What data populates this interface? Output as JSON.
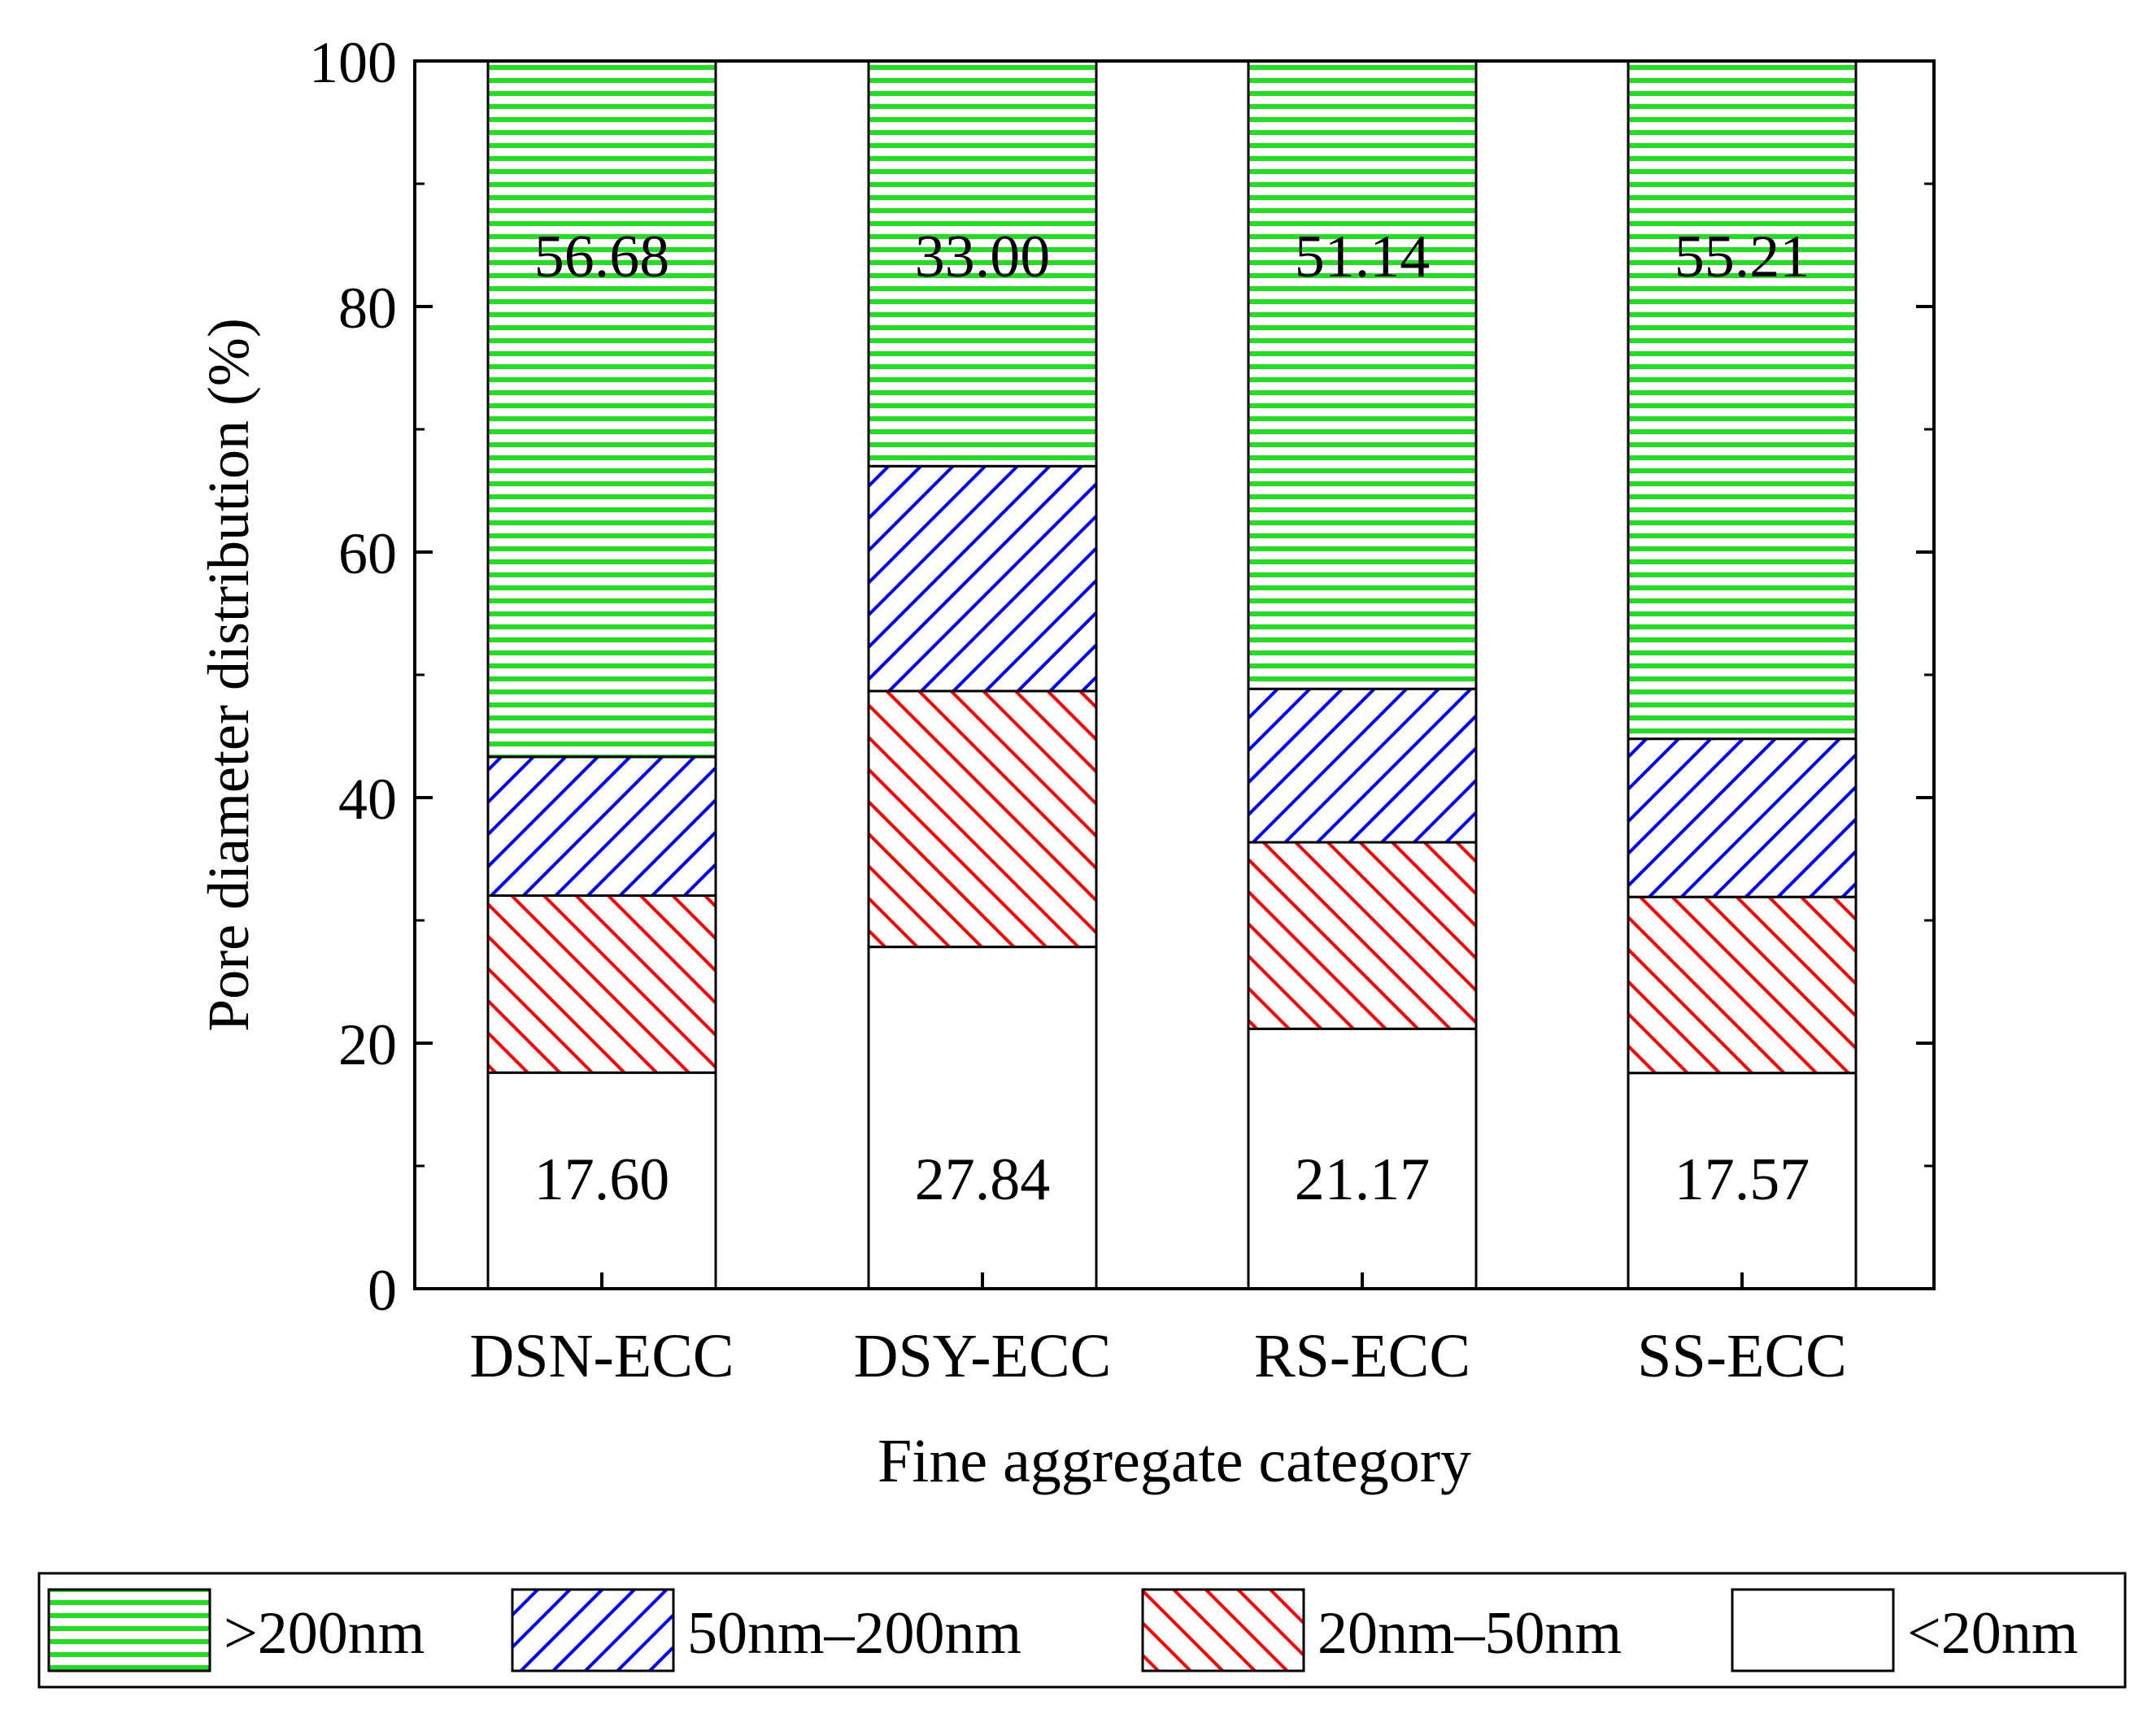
{
  "chart_data": {
    "type": "bar",
    "stacked": true,
    "title": "",
    "xlabel": "Fine aggregate category",
    "ylabel": "Pore diameter distribution (%)",
    "ylim": [
      0,
      100
    ],
    "yticks": [
      0,
      20,
      40,
      60,
      80,
      100
    ],
    "ytick_labels": [
      "0",
      "20",
      "40",
      "60",
      "80",
      "100"
    ],
    "categories": [
      "DSN-ECC",
      "DSY-ECC",
      "RS-ECC",
      "SS-ECC"
    ],
    "series": [
      {
        "name": "<20nm",
        "values": [
          17.6,
          27.84,
          21.17,
          17.57
        ],
        "color": "#ffffff",
        "pattern": "none"
      },
      {
        "name": "20nm–50nm",
        "values": [
          14.42,
          20.84,
          15.19,
          14.34
        ],
        "color": "#ff0000",
        "pattern": "diagonal-up"
      },
      {
        "name": "50nm–200nm",
        "values": [
          11.3,
          18.32,
          12.5,
          12.88
        ],
        "color": "#0000ff",
        "pattern": "diagonal-down"
      },
      {
        "name": ">200nm",
        "values": [
          56.68,
          33.0,
          51.14,
          55.21
        ],
        "color": "#00dd00",
        "pattern": "horizontal"
      }
    ],
    "data_labels": {
      "top": [
        "56.68",
        "33.00",
        "51.14",
        "55.21"
      ],
      "bottom": [
        "17.60",
        "27.84",
        "21.17",
        "17.57"
      ]
    },
    "legend": {
      "position": "bottom",
      "order": [
        ">200nm",
        "50nm–200nm",
        "20nm–50nm",
        "<20nm"
      ]
    }
  }
}
